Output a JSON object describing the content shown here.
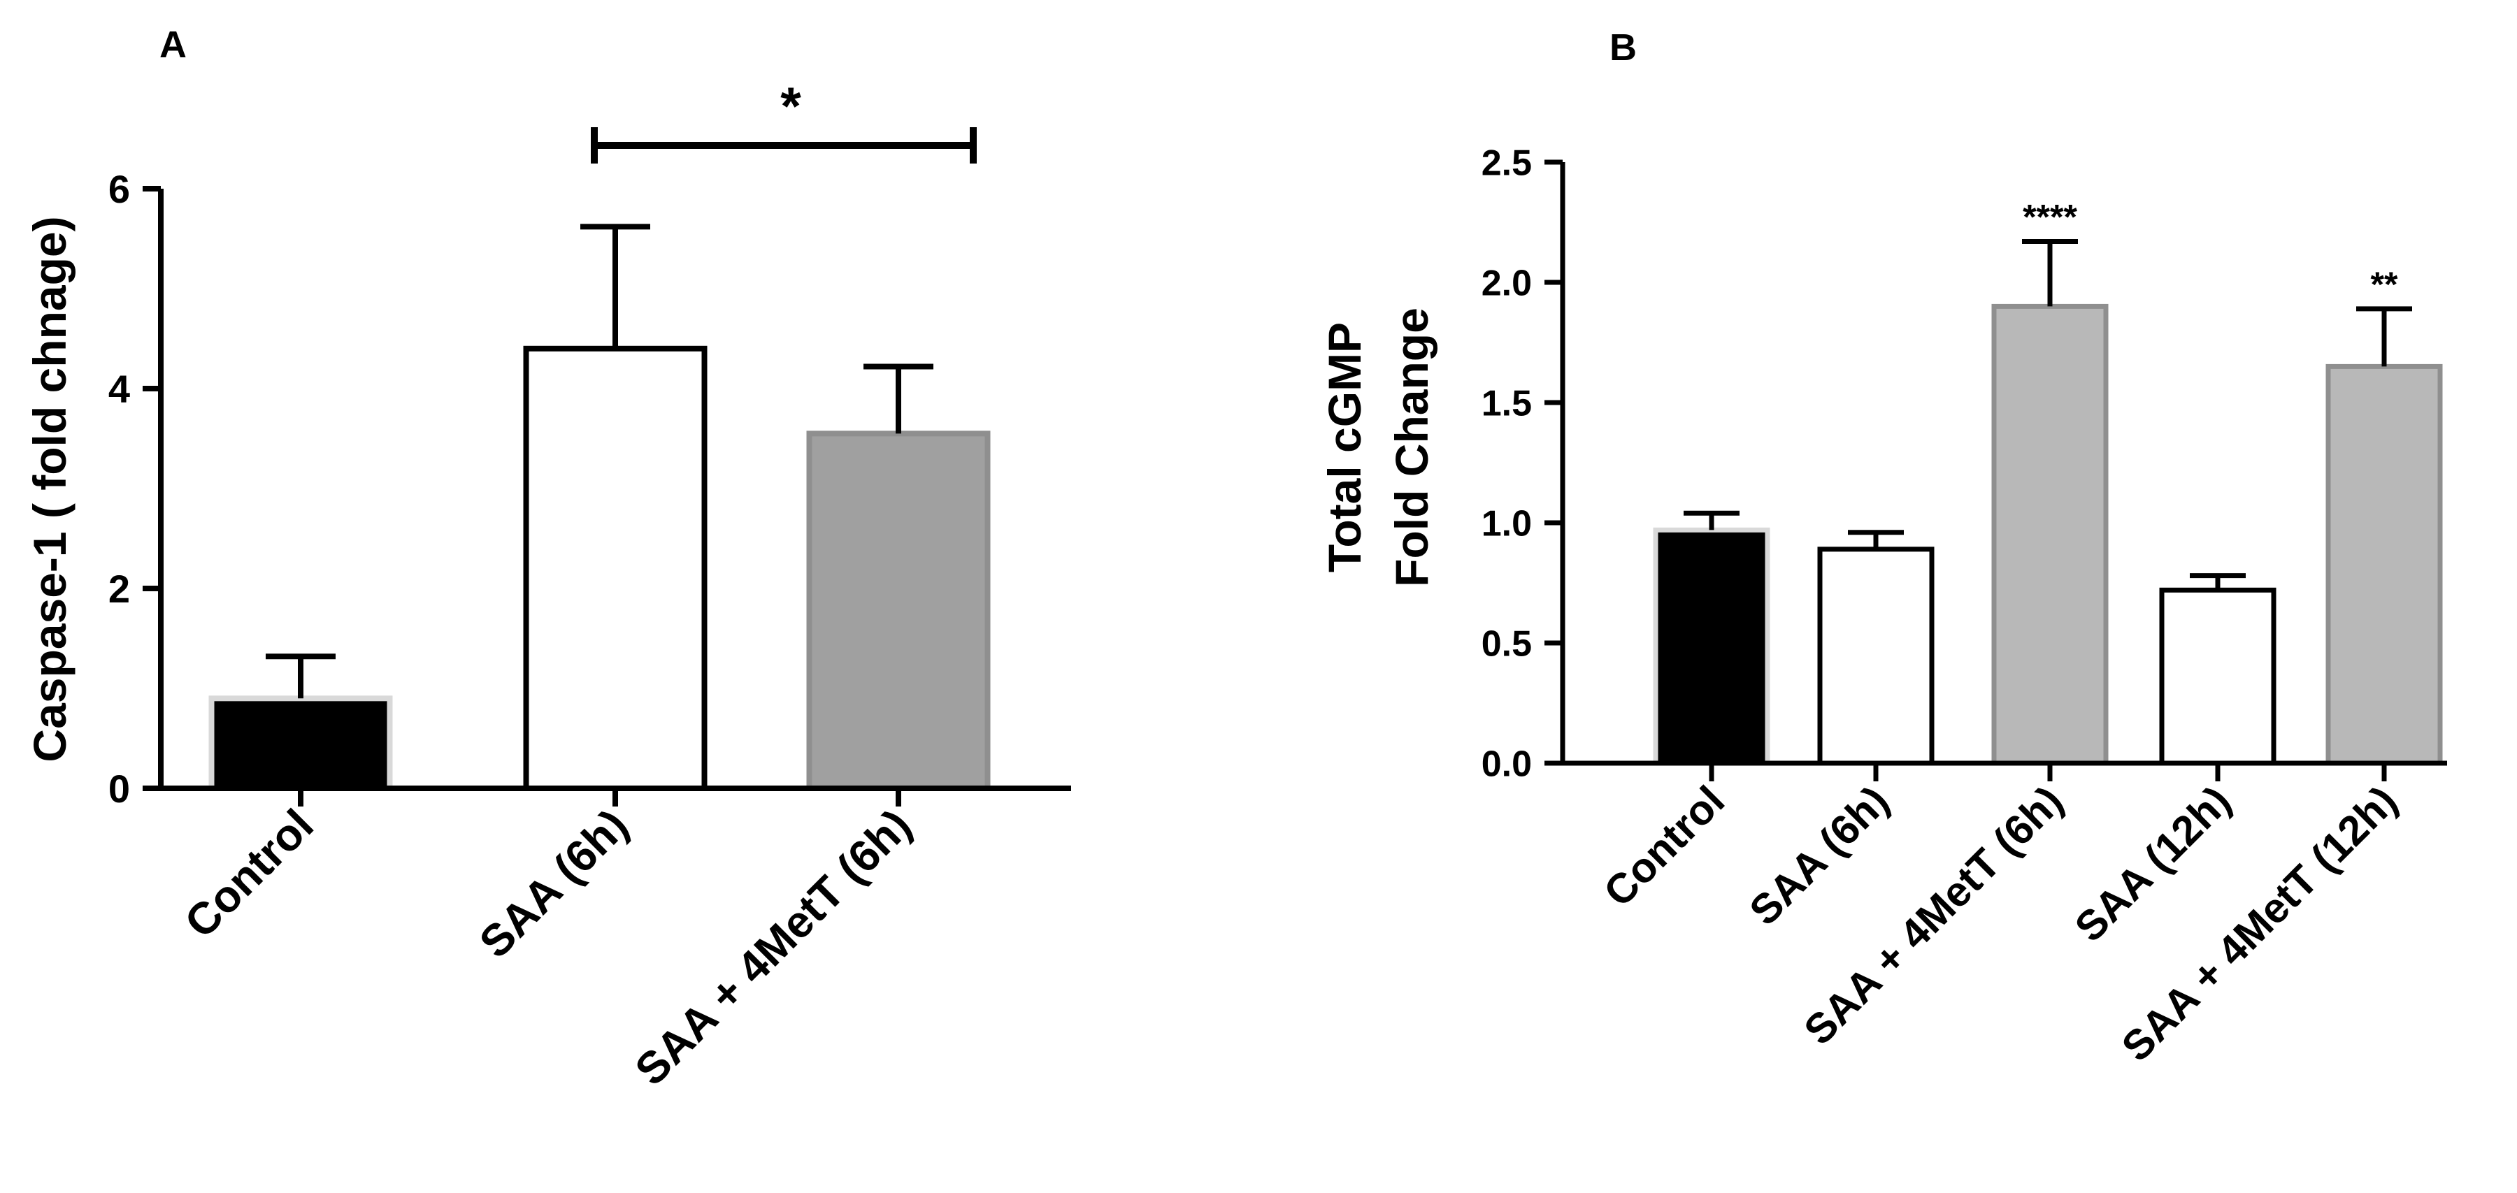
{
  "chart_data": [
    {
      "panel_label": "A",
      "type": "bar",
      "ylabel": "Caspase-1 ( fold chnage)",
      "xlabel": "",
      "ylim": [
        0,
        6
      ],
      "yticks": [
        "0",
        "2",
        "4",
        "6"
      ],
      "categories": [
        "Control",
        "SAA (6h)",
        "SAA + 4MetT (6h)"
      ],
      "values": [
        0.9,
        4.4,
        3.55
      ],
      "errors": [
        0.42,
        1.22,
        0.67
      ],
      "bar_colors": [
        "#000000",
        "#ffffff",
        "#a0a0a0"
      ],
      "significance": [
        {
          "from": 1,
          "to": 2,
          "label": "*"
        }
      ]
    },
    {
      "panel_label": "B",
      "type": "bar",
      "ylabel_lines": [
        "Total cGMP",
        "Fold Change"
      ],
      "xlabel": "",
      "ylim": [
        0,
        2.5
      ],
      "yticks": [
        "0.0",
        "0.5",
        "1.0",
        "1.5",
        "2.0",
        "2.5"
      ],
      "categories": [
        "Control",
        "SAA (6h)",
        "SAA + 4MetT (6h)",
        "SAA (12h)",
        "SAA + 4MetT (12h)"
      ],
      "values": [
        0.97,
        0.89,
        1.9,
        0.72,
        1.65
      ],
      "errors": [
        0.07,
        0.07,
        0.27,
        0.06,
        0.24
      ],
      "bar_colors": [
        "#000000",
        "#ffffff",
        "#b8b8b8",
        "#ffffff",
        "#b8b8b8"
      ],
      "annotations": [
        "",
        "",
        "****",
        "",
        "**"
      ]
    }
  ]
}
